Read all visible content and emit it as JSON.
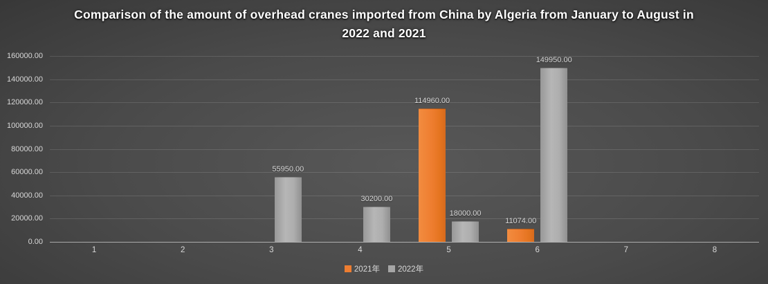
{
  "chart_data": {
    "type": "bar",
    "title": "Comparison of the amount of overhead cranes imported from China by Algeria from January to August in 2022 and 2021",
    "categories": [
      "1",
      "2",
      "3",
      "4",
      "5",
      "6",
      "7",
      "8"
    ],
    "series": [
      {
        "name": "2021年",
        "color": "#ED7D31",
        "values": [
          null,
          null,
          null,
          null,
          114960,
          11074,
          null,
          null
        ],
        "labels": [
          "",
          "",
          "",
          "",
          "114960.00",
          "11074.00",
          "",
          ""
        ]
      },
      {
        "name": "2022年",
        "color": "#A6A6A6",
        "values": [
          null,
          null,
          55950,
          30200,
          18000,
          149950,
          null,
          null
        ],
        "labels": [
          "",
          "",
          "55950.00",
          "30200.00",
          "18000.00",
          "149950.00",
          "",
          ""
        ]
      }
    ],
    "ylim": [
      0,
      160000
    ],
    "ytick_step": 20000,
    "ytick_labels": [
      "0.00",
      "20000.00",
      "40000.00",
      "60000.00",
      "80000.00",
      "100000.00",
      "120000.00",
      "140000.00",
      "160000.00"
    ],
    "xlabel": "",
    "ylabel": "",
    "grid": true,
    "legend_position": "bottom",
    "colors": {
      "background_center": "#585858",
      "background_edge": "#212121",
      "text": "#D9D9D9",
      "title_text": "#FFFFFF",
      "gridline": "#5A5A5A",
      "axis_line": "#A6A6A6"
    }
  }
}
